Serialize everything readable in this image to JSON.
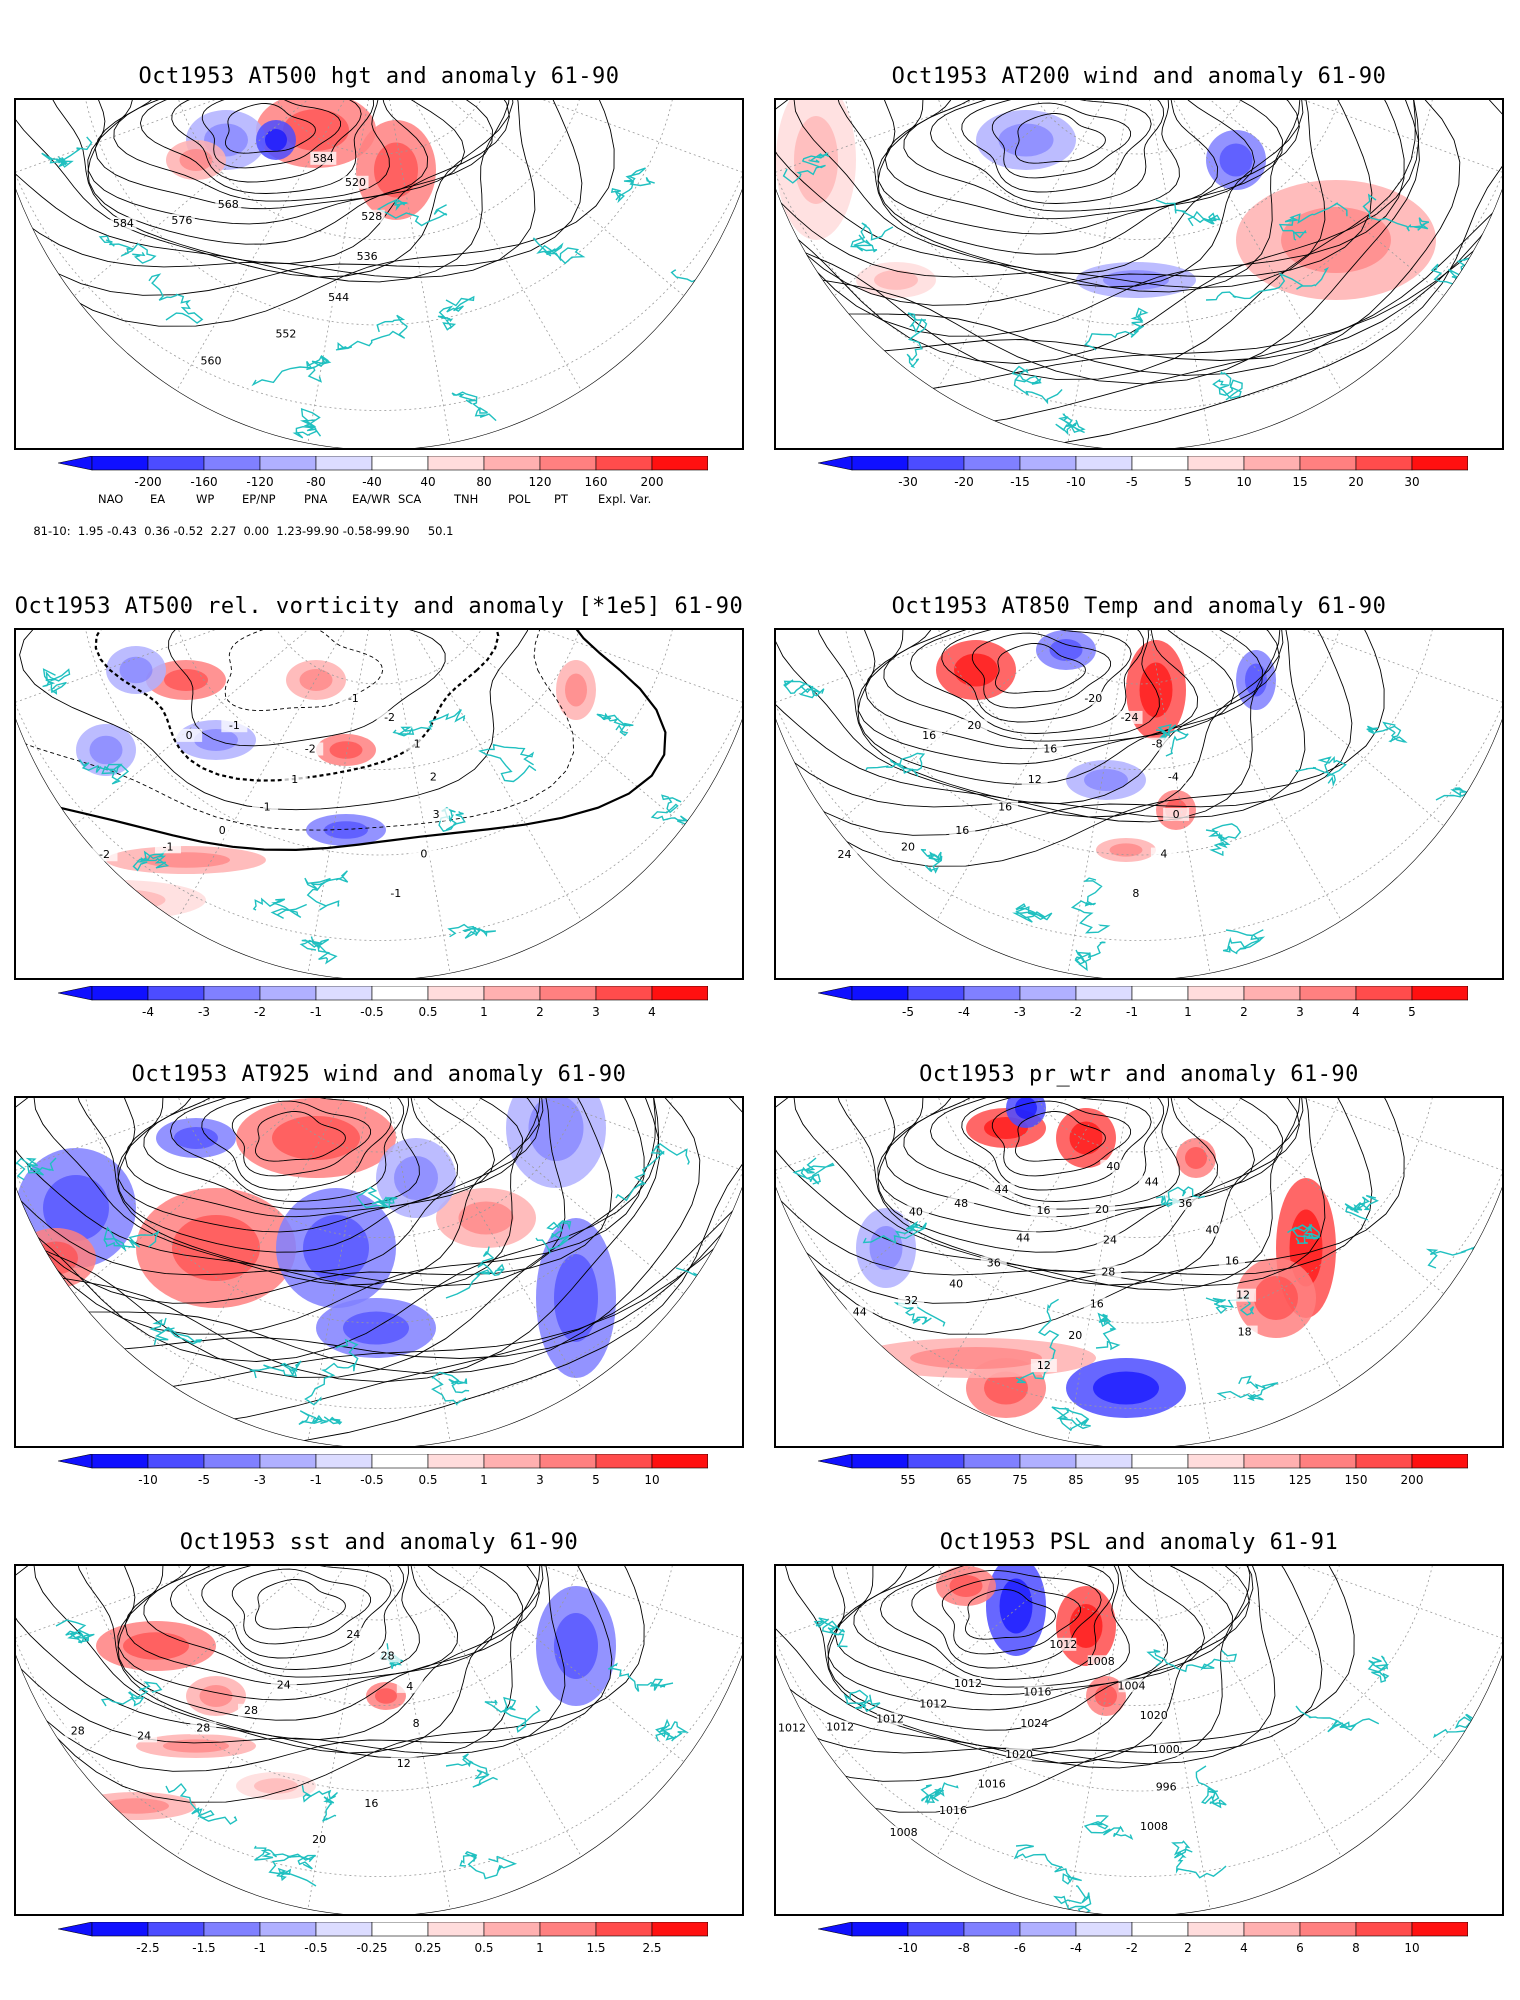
{
  "panels": [
    {
      "title": "Oct1953 AT500 hgt and anomaly 61-90",
      "colorbar": [
        "-200",
        "-160",
        "-120",
        "-80",
        "-40",
        "40",
        "80",
        "120",
        "160",
        "200"
      ],
      "contour_labels": [
        "584",
        "520",
        "528",
        "536",
        "544",
        "552",
        "560",
        "568",
        "576",
        "584"
      ]
    },
    {
      "title": "Oct1953 AT200 wind and anomaly 61-90",
      "colorbar": [
        "-30",
        "-20",
        "-15",
        "-10",
        "-5",
        "5",
        "10",
        "15",
        "20",
        "30"
      ],
      "contour_labels": []
    },
    {
      "title": "Oct1953 AT500 rel. vorticity and anomaly [*1e5] 61-90",
      "colorbar": [
        "-4",
        "-3",
        "-2",
        "-1",
        "-0.5",
        "0.5",
        "1",
        "2",
        "3",
        "4"
      ],
      "contour_labels": [
        "-1",
        "-2",
        "1",
        "2",
        "3",
        "0",
        "-1",
        "-2",
        "1",
        "-1",
        "0",
        "-1",
        "-2",
        "-1",
        "0"
      ]
    },
    {
      "title": "Oct1953 AT850 Temp and anomaly 61-90",
      "colorbar": [
        "-5",
        "-4",
        "-3",
        "-2",
        "-1",
        "1",
        "2",
        "3",
        "4",
        "5"
      ],
      "contour_labels": [
        "-20",
        "-24",
        "-8",
        "-4",
        "0",
        "4",
        "8",
        "16",
        "12",
        "16",
        "16",
        "20",
        "24",
        "20",
        "16"
      ]
    },
    {
      "title": "Oct1953 AT925 wind and anomaly 61-90",
      "colorbar": [
        "-10",
        "-5",
        "-3",
        "-1",
        "-0.5",
        "0.5",
        "1",
        "3",
        "5",
        "10"
      ],
      "contour_labels": []
    },
    {
      "title": "Oct1953 pr_wtr and anomaly 61-90",
      "colorbar": [
        "55",
        "65",
        "75",
        "85",
        "95",
        "105",
        "115",
        "125",
        "150",
        "200"
      ],
      "contour_labels": [
        "40",
        "44",
        "36",
        "40",
        "16",
        "12",
        "18",
        "20",
        "24",
        "28",
        "16",
        "20",
        "12",
        "16",
        "44",
        "36",
        "40",
        "32",
        "44",
        "44",
        "48",
        "40"
      ]
    },
    {
      "title": "Oct1953 sst and anomaly 61-90",
      "colorbar": [
        "-2.5",
        "-1.5",
        "-1",
        "-0.5",
        "-0.25",
        "0.25",
        "0.5",
        "1",
        "1.5",
        "2.5"
      ],
      "contour_labels": [
        "24",
        "28",
        "4",
        "8",
        "12",
        "16",
        "20",
        "24",
        "28",
        "28",
        "24",
        "28"
      ]
    },
    {
      "title": "Oct1953 PSL and anomaly 61-91",
      "colorbar": [
        "-10",
        "-8",
        "-6",
        "-4",
        "-2",
        "2",
        "4",
        "6",
        "8",
        "10"
      ],
      "contour_labels": [
        "1012",
        "1008",
        "1004",
        "1020",
        "1000",
        "996",
        "1008",
        "1016",
        "1024",
        "1020",
        "1016",
        "1016",
        "1008",
        "1012",
        "1012",
        "1012",
        "1012",
        "1012"
      ]
    }
  ],
  "index_table": {
    "headers": [
      "NAO",
      "EA",
      "WP",
      "EP/NP",
      "PNA",
      "EA/WR",
      "SCA",
      "TNH",
      "POL",
      "PT",
      "Expl. Var."
    ],
    "row_label": "81-10:",
    "values": "1.95 -0.43  0.36 -0.52  2.27  0.00  1.23-99.90 -0.58-99.90     50.1"
  },
  "colors": {
    "scale": [
      "#1010ff",
      "#4c4cff",
      "#8080ff",
      "#b0b0ff",
      "#dcdcff",
      "#ffffff",
      "#ffdcdc",
      "#ffb0b0",
      "#ff8080",
      "#ff4c4c",
      "#ff1010"
    ],
    "coast": "#20c0c0",
    "grid": "#9a9a9a"
  }
}
